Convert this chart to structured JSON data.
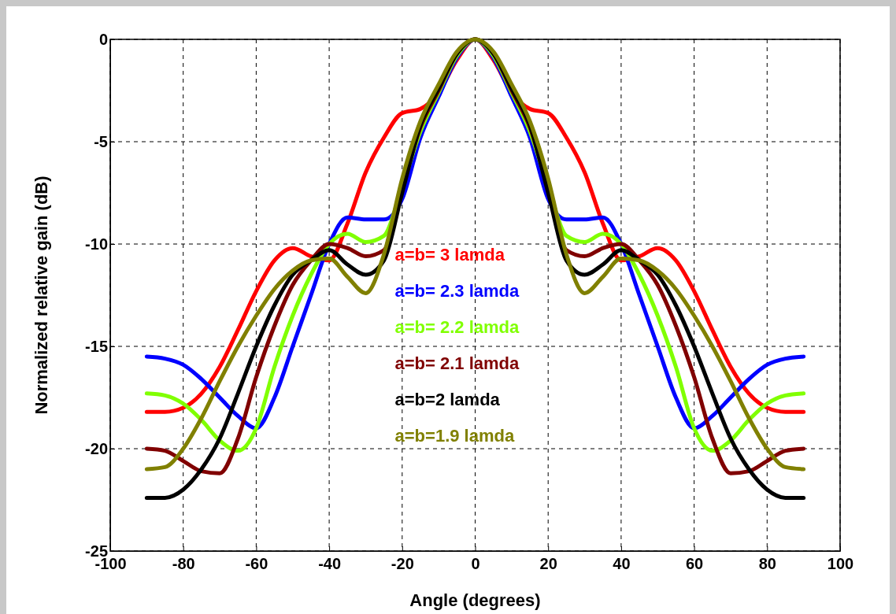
{
  "chart_data": {
    "type": "line",
    "xlabel": "Angle (degrees)",
    "ylabel": "Normalized relative gain (dB)",
    "x": [
      -90,
      -85,
      -80,
      -75,
      -70,
      -65,
      -60,
      -55,
      -50,
      -45,
      -40,
      -35,
      -30,
      -25,
      -20,
      -15,
      -10,
      -5,
      0,
      5,
      10,
      15,
      20,
      25,
      30,
      35,
      40,
      45,
      50,
      55,
      60,
      65,
      70,
      75,
      80,
      85,
      90
    ],
    "series": [
      {
        "name": "a=b= 3 lamda",
        "color": "#ff0000",
        "values": [
          -18.2,
          -18.2,
          -18.0,
          -17.3,
          -16.0,
          -14.2,
          -12.3,
          -10.8,
          -10.2,
          -10.6,
          -10.8,
          -9.0,
          -6.5,
          -4.8,
          -3.6,
          -3.4,
          -2.6,
          -1.0,
          0,
          -1.0,
          -2.6,
          -3.4,
          -3.6,
          -4.8,
          -6.5,
          -9.0,
          -10.8,
          -10.6,
          -10.2,
          -10.8,
          -12.3,
          -14.2,
          -16.0,
          -17.3,
          -18.0,
          -18.2,
          -18.2
        ]
      },
      {
        "name": "a=b= 2.3 lamda",
        "color": "#0000ff",
        "values": [
          -15.5,
          -15.6,
          -15.9,
          -16.6,
          -17.5,
          -18.4,
          -19.0,
          -17.5,
          -15.0,
          -12.5,
          -10.0,
          -8.7,
          -8.8,
          -8.8,
          -7.8,
          -4.8,
          -2.8,
          -0.9,
          0,
          -0.9,
          -2.8,
          -4.8,
          -7.8,
          -8.8,
          -8.8,
          -8.7,
          -10.0,
          -12.5,
          -15.0,
          -17.5,
          -19.0,
          -18.4,
          -17.5,
          -16.6,
          -15.9,
          -15.6,
          -15.5
        ]
      },
      {
        "name": "a=b= 2.2 lamda",
        "color": "#80ff00",
        "values": [
          -17.3,
          -17.4,
          -17.8,
          -18.6,
          -19.6,
          -20.1,
          -19.0,
          -16.0,
          -13.5,
          -11.5,
          -10.0,
          -9.5,
          -9.9,
          -9.6,
          -7.2,
          -4.5,
          -2.6,
          -0.8,
          0,
          -0.8,
          -2.6,
          -4.5,
          -7.2,
          -9.6,
          -9.9,
          -9.5,
          -10.0,
          -11.5,
          -13.5,
          -16.0,
          -19.0,
          -20.1,
          -19.6,
          -18.6,
          -17.8,
          -17.4,
          -17.3
        ]
      },
      {
        "name": "a=b= 2.1 lamda",
        "color": "#800000",
        "values": [
          -20.0,
          -20.1,
          -20.6,
          -21.1,
          -21.2,
          -19.5,
          -16.5,
          -14.0,
          -12.0,
          -10.8,
          -10.0,
          -10.2,
          -10.6,
          -10.3,
          -7.3,
          -4.3,
          -2.5,
          -0.7,
          0,
          -0.7,
          -2.5,
          -4.3,
          -7.3,
          -10.3,
          -10.6,
          -10.2,
          -10.0,
          -10.8,
          -12.0,
          -14.0,
          -16.5,
          -19.5,
          -21.2,
          -21.1,
          -20.6,
          -20.1,
          -20.0
        ]
      },
      {
        "name": "a=b=2 lamda",
        "color": "#000000",
        "values": [
          -22.4,
          -22.4,
          -22.0,
          -21.0,
          -19.5,
          -17.3,
          -15.0,
          -13.0,
          -11.5,
          -10.8,
          -10.3,
          -11.0,
          -11.5,
          -10.8,
          -7.5,
          -4.2,
          -2.4,
          -0.7,
          0,
          -0.7,
          -2.4,
          -4.2,
          -7.5,
          -10.8,
          -11.5,
          -11.0,
          -10.3,
          -10.8,
          -11.5,
          -13.0,
          -15.0,
          -17.3,
          -19.5,
          -21.0,
          -22.0,
          -22.4,
          -22.4
        ]
      },
      {
        "name": "a=b=1.9 lamda",
        "color": "#808000",
        "values": [
          -21.0,
          -20.9,
          -20.0,
          -18.5,
          -16.7,
          -15.0,
          -13.5,
          -12.2,
          -11.3,
          -10.8,
          -10.7,
          -11.6,
          -12.4,
          -10.5,
          -6.8,
          -4.0,
          -2.2,
          -0.6,
          0,
          -0.6,
          -2.2,
          -4.0,
          -6.8,
          -10.5,
          -12.4,
          -11.6,
          -10.7,
          -10.8,
          -11.3,
          -12.2,
          -13.5,
          -15.0,
          -16.7,
          -18.5,
          -20.0,
          -20.9,
          -21.0
        ]
      }
    ],
    "xlim": [
      -100,
      100
    ],
    "xticks": [
      -100,
      -80,
      -60,
      -40,
      -20,
      0,
      20,
      40,
      60,
      80,
      100
    ],
    "ylim": [
      -25,
      0
    ],
    "yticks": [
      -25,
      -20,
      -15,
      -10,
      -5,
      0
    ],
    "grid": true,
    "legend": "center",
    "marker": "none",
    "line_style": "solid"
  }
}
